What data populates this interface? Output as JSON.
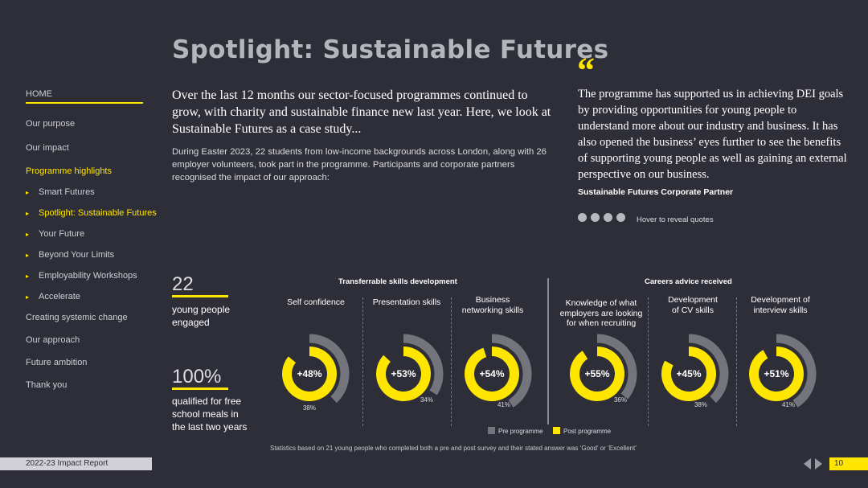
{
  "page": {
    "title": "Spotlight: Sustainable Futures",
    "lead": "Over the last 12 months our sector-focused programmes continued to grow, with charity and sustainable finance new last year. Here, we look at Sustainable Futures as a case study...",
    "body": "During Easter 2023, 22 students from low-income backgrounds across London, along with 26 employer volunteers, took part in the programme. Participants and corporate partners recognised the impact of our approach:",
    "quote_mark": "“",
    "quote": "The programme has supported us in achieving DEI goals by providing opportunities for young people to understand more about our industry and business. It has also opened the business’ eyes further to see the benefits of supporting young people as well as gaining an external perspective on our business.",
    "quote_author": "Sustainable Futures Corporate Partner",
    "hover_hint": "Hover to reveal quotes",
    "quote_dots": 4,
    "stats_note": "Statistics based on 21 young people who completed both a pre and post survey and their stated answer was ‘Good’ or ‘Excellent’"
  },
  "sidebar": {
    "home": "HOME",
    "items": [
      {
        "label": "Our purpose",
        "sub": false,
        "active": false
      },
      {
        "label": "Our impact",
        "sub": false,
        "active": false
      },
      {
        "label": "Programme highlights",
        "sub": false,
        "active": true
      },
      {
        "label": "Smart Futures",
        "sub": true,
        "active": false
      },
      {
        "label": "Spotlight: Sustainable Futures",
        "sub": true,
        "active": true
      },
      {
        "label": "Your Future",
        "sub": true,
        "active": false
      },
      {
        "label": "Beyond Your Limits",
        "sub": true,
        "active": false
      },
      {
        "label": "Employability Workshops",
        "sub": true,
        "active": false
      },
      {
        "label": "Accelerate",
        "sub": true,
        "active": false
      },
      {
        "label": "Creating systemic change",
        "sub": false,
        "active": false
      },
      {
        "label": "Our approach",
        "sub": false,
        "active": false
      },
      {
        "label": "Future ambition",
        "sub": false,
        "active": false
      },
      {
        "label": "Thank you",
        "sub": false,
        "active": false
      }
    ]
  },
  "footer": {
    "report": "2022-23 Impact Report",
    "page_number": "10"
  },
  "stats": [
    {
      "number": "22",
      "label": [
        "young people",
        "engaged"
      ]
    },
    {
      "number": "100%",
      "label": [
        "qualified for free",
        "school meals in",
        "the last two years"
      ]
    }
  ],
  "colors": {
    "background": "#2e2e38",
    "accent": "#ffe600",
    "pre": "#74747c",
    "post": "#ffe600"
  },
  "chart_data": {
    "type": "donut",
    "groups": [
      {
        "title": "Transferrable skills development",
        "indices": [
          0,
          1,
          2
        ]
      },
      {
        "title": "Careers advice received",
        "indices": [
          3,
          4,
          5
        ]
      }
    ],
    "legend": [
      "Pre programme",
      "Post programme"
    ],
    "items": [
      {
        "label": [
          "Self confidence"
        ],
        "pre": 38,
        "post": 86,
        "change": "+48%"
      },
      {
        "label": [
          "Presentation skills"
        ],
        "pre": 34,
        "post": 87,
        "change": "+53%"
      },
      {
        "label": [
          "Business",
          "networking skills"
        ],
        "pre": 41,
        "post": 95,
        "change": "+54%"
      },
      {
        "label": [
          "Knowledge of what",
          "employers are looking",
          "for when recruiting"
        ],
        "pre": 36,
        "post": 91,
        "change": "+55%"
      },
      {
        "label": [
          "Development",
          "of CV skills"
        ],
        "pre": 38,
        "post": 83,
        "change": "+45%"
      },
      {
        "label": [
          "Development of",
          "interview skills"
        ],
        "pre": 41,
        "post": 92,
        "change": "+51%"
      }
    ]
  }
}
